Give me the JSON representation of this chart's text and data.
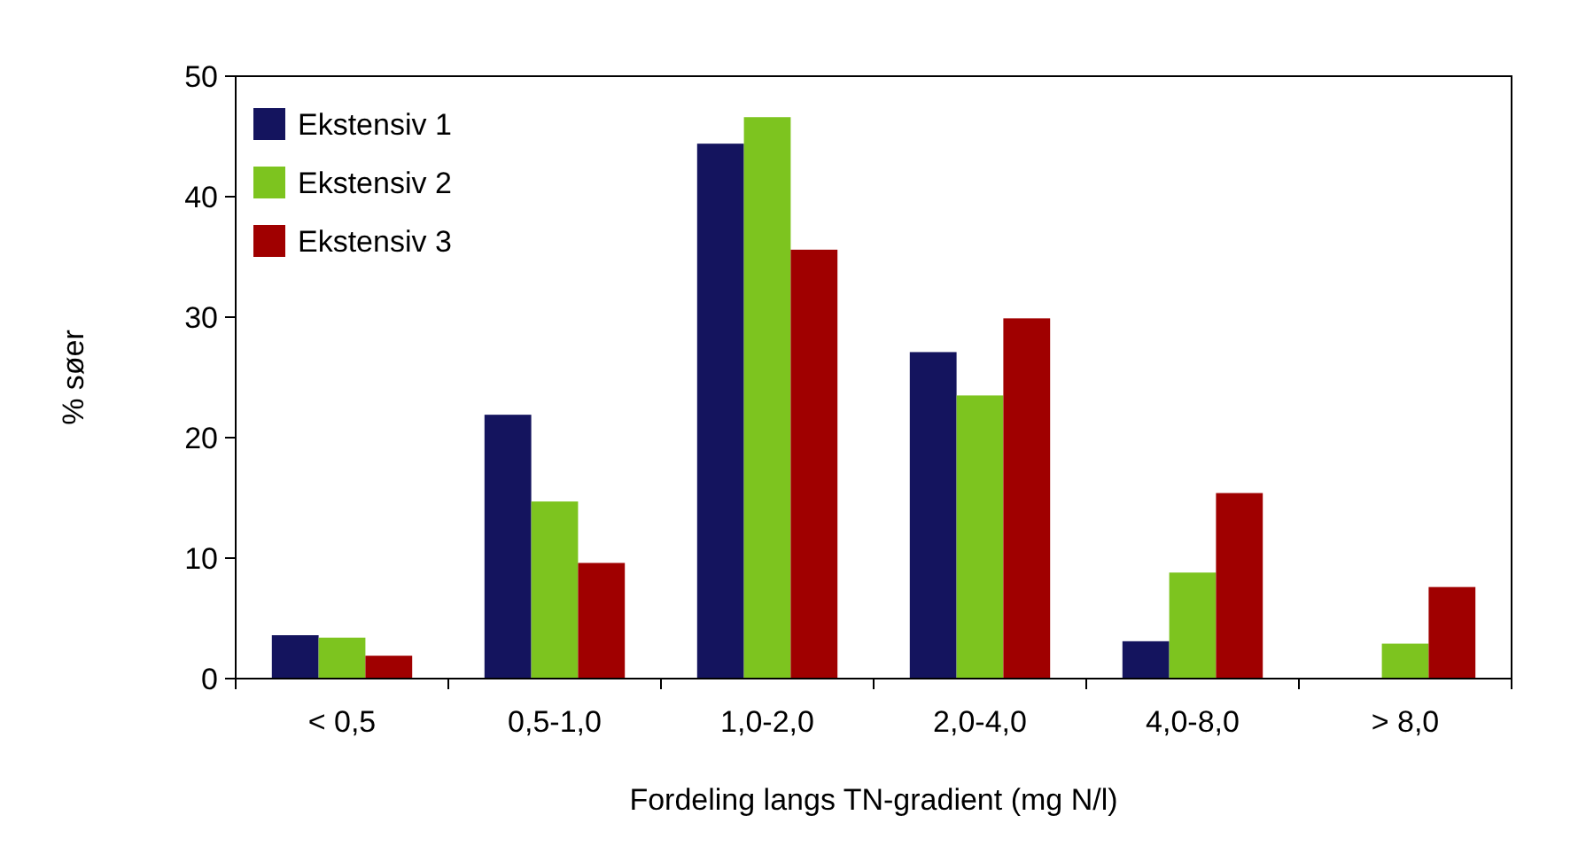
{
  "chart_data": {
    "type": "bar",
    "xlabel": "Fordeling langs TN-gradient (mg N/l)",
    "ylabel": "% søer",
    "categories": [
      "< 0,5",
      "0,5-1,0",
      "1,0-2,0",
      "2,0-4,0",
      "4,0-8,0",
      "> 8,0"
    ],
    "series": [
      {
        "name": "Ekstensiv 1",
        "color": "#14145e",
        "values": [
          3.6,
          21.9,
          44.4,
          27.1,
          3.1,
          null
        ]
      },
      {
        "name": "Ekstensiv 2",
        "color": "#7dc41f",
        "values": [
          3.4,
          14.7,
          46.6,
          23.5,
          8.8,
          2.9
        ]
      },
      {
        "name": "Ekstensiv 3",
        "color": "#a00000",
        "values": [
          1.9,
          9.6,
          35.6,
          29.9,
          15.4,
          7.6
        ]
      }
    ],
    "ylim": [
      0,
      50
    ],
    "yticks": [
      0,
      10,
      20,
      30,
      40,
      50
    ],
    "grid": false,
    "legend": "top left"
  }
}
